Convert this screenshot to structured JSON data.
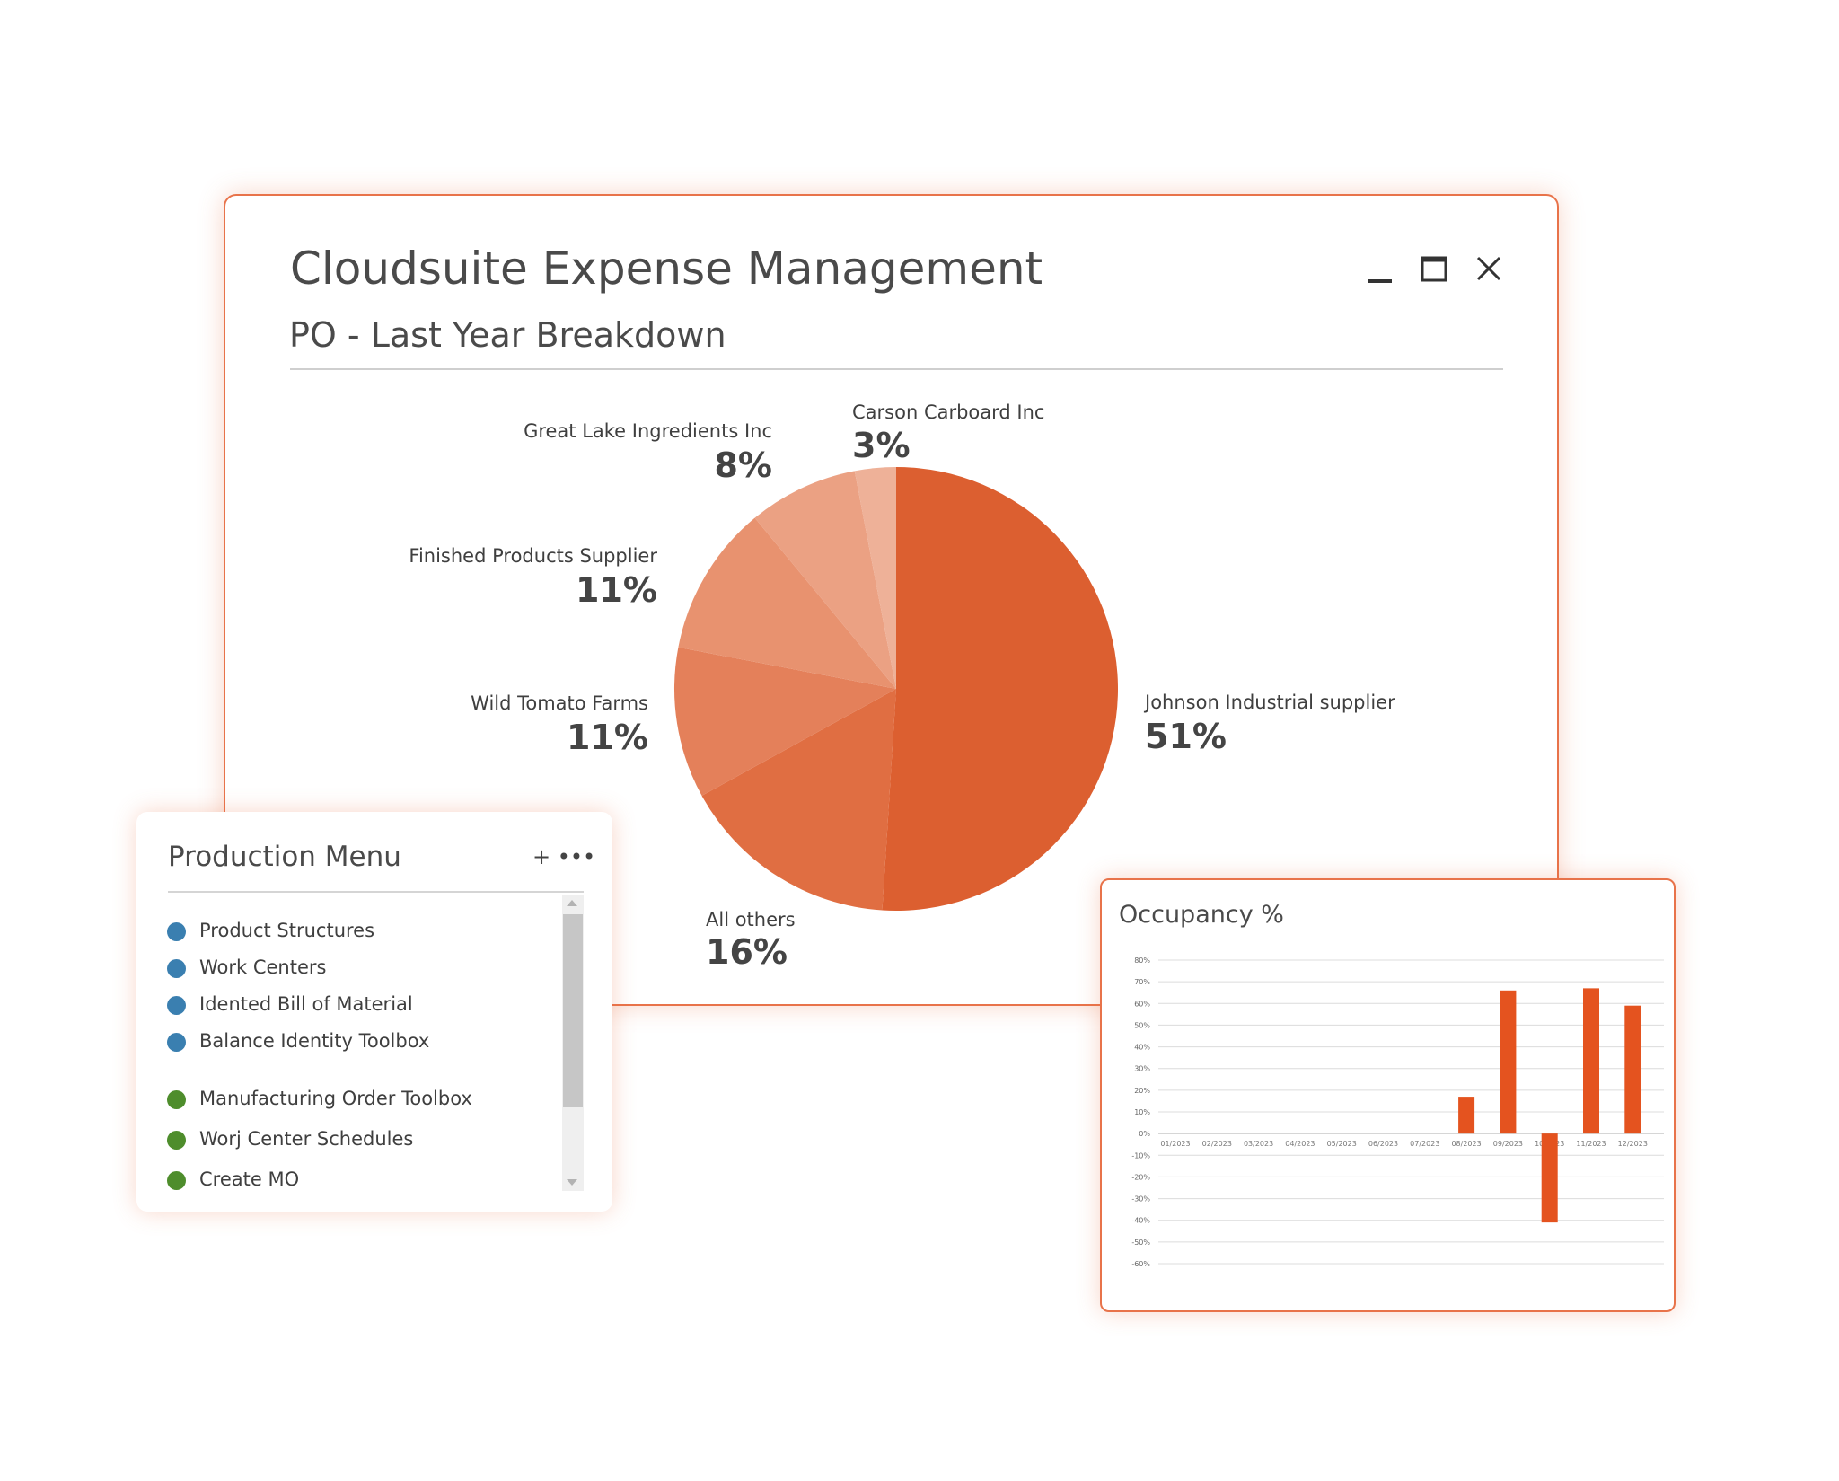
{
  "main_window": {
    "title": "Cloudsuite Expense Management",
    "subtitle": "PO - Last Year Breakdown"
  },
  "chart_data": [
    {
      "type": "pie",
      "title": "PO - Last Year Breakdown",
      "slices": [
        {
          "label": "Johnson Industrial supplier",
          "value": 51,
          "pct_label": "51%",
          "color": "#dc5f30"
        },
        {
          "label": "All others",
          "value": 16,
          "pct_label": "16%",
          "color": "#e06e42"
        },
        {
          "label": "Wild Tomato Farms",
          "value": 11,
          "pct_label": "11%",
          "color": "#e4805a"
        },
        {
          "label": "Finished Products Supplier",
          "value": 11,
          "pct_label": "11%",
          "color": "#e8926f"
        },
        {
          "label": "Great Lake Ingredients Inc",
          "value": 8,
          "pct_label": "8%",
          "color": "#eba183"
        },
        {
          "label": "Carson Carboard Inc",
          "value": 3,
          "pct_label": "3%",
          "color": "#eeb198"
        }
      ]
    },
    {
      "type": "bar",
      "title": "Occupancy %",
      "categories": [
        "01/2023",
        "02/2023",
        "03/2023",
        "04/2023",
        "05/2023",
        "06/2023",
        "07/2023",
        "08/2023",
        "09/2023",
        "10/2023",
        "11/2023",
        "12/2023"
      ],
      "values": [
        0,
        0,
        0,
        0,
        0,
        0,
        0,
        17,
        66,
        -41,
        67,
        59
      ],
      "ylim": [
        -60,
        80
      ],
      "yticks": [
        "80%",
        "70%",
        "60%",
        "50%",
        "40%",
        "30%",
        "20%",
        "10%",
        "0%",
        "-10%",
        "-20%",
        "-30%",
        "-40%",
        "-50%",
        "-60%"
      ],
      "grid": true,
      "color": "#e4531f"
    }
  ],
  "production_menu": {
    "title": "Production Menu",
    "actions": "+ •••",
    "items": [
      {
        "label": "Product Structures",
        "color": "#3a7fb0"
      },
      {
        "label": "Work Centers",
        "color": "#3a7fb0"
      },
      {
        "label": "Idented Bill of Material",
        "color": "#3a7fb0"
      },
      {
        "label": "Balance Identity Toolbox",
        "color": "#3a7fb0"
      },
      {
        "label": "Manufacturing Order Toolbox",
        "color": "#4e8d2c"
      },
      {
        "label": "Worj Center Schedules",
        "color": "#4e8d2c"
      },
      {
        "label": "Create MO",
        "color": "#4e8d2c"
      }
    ]
  },
  "icons": {
    "minimize": "minimize-icon",
    "maximize": "maximize-icon",
    "close": "close-icon"
  }
}
